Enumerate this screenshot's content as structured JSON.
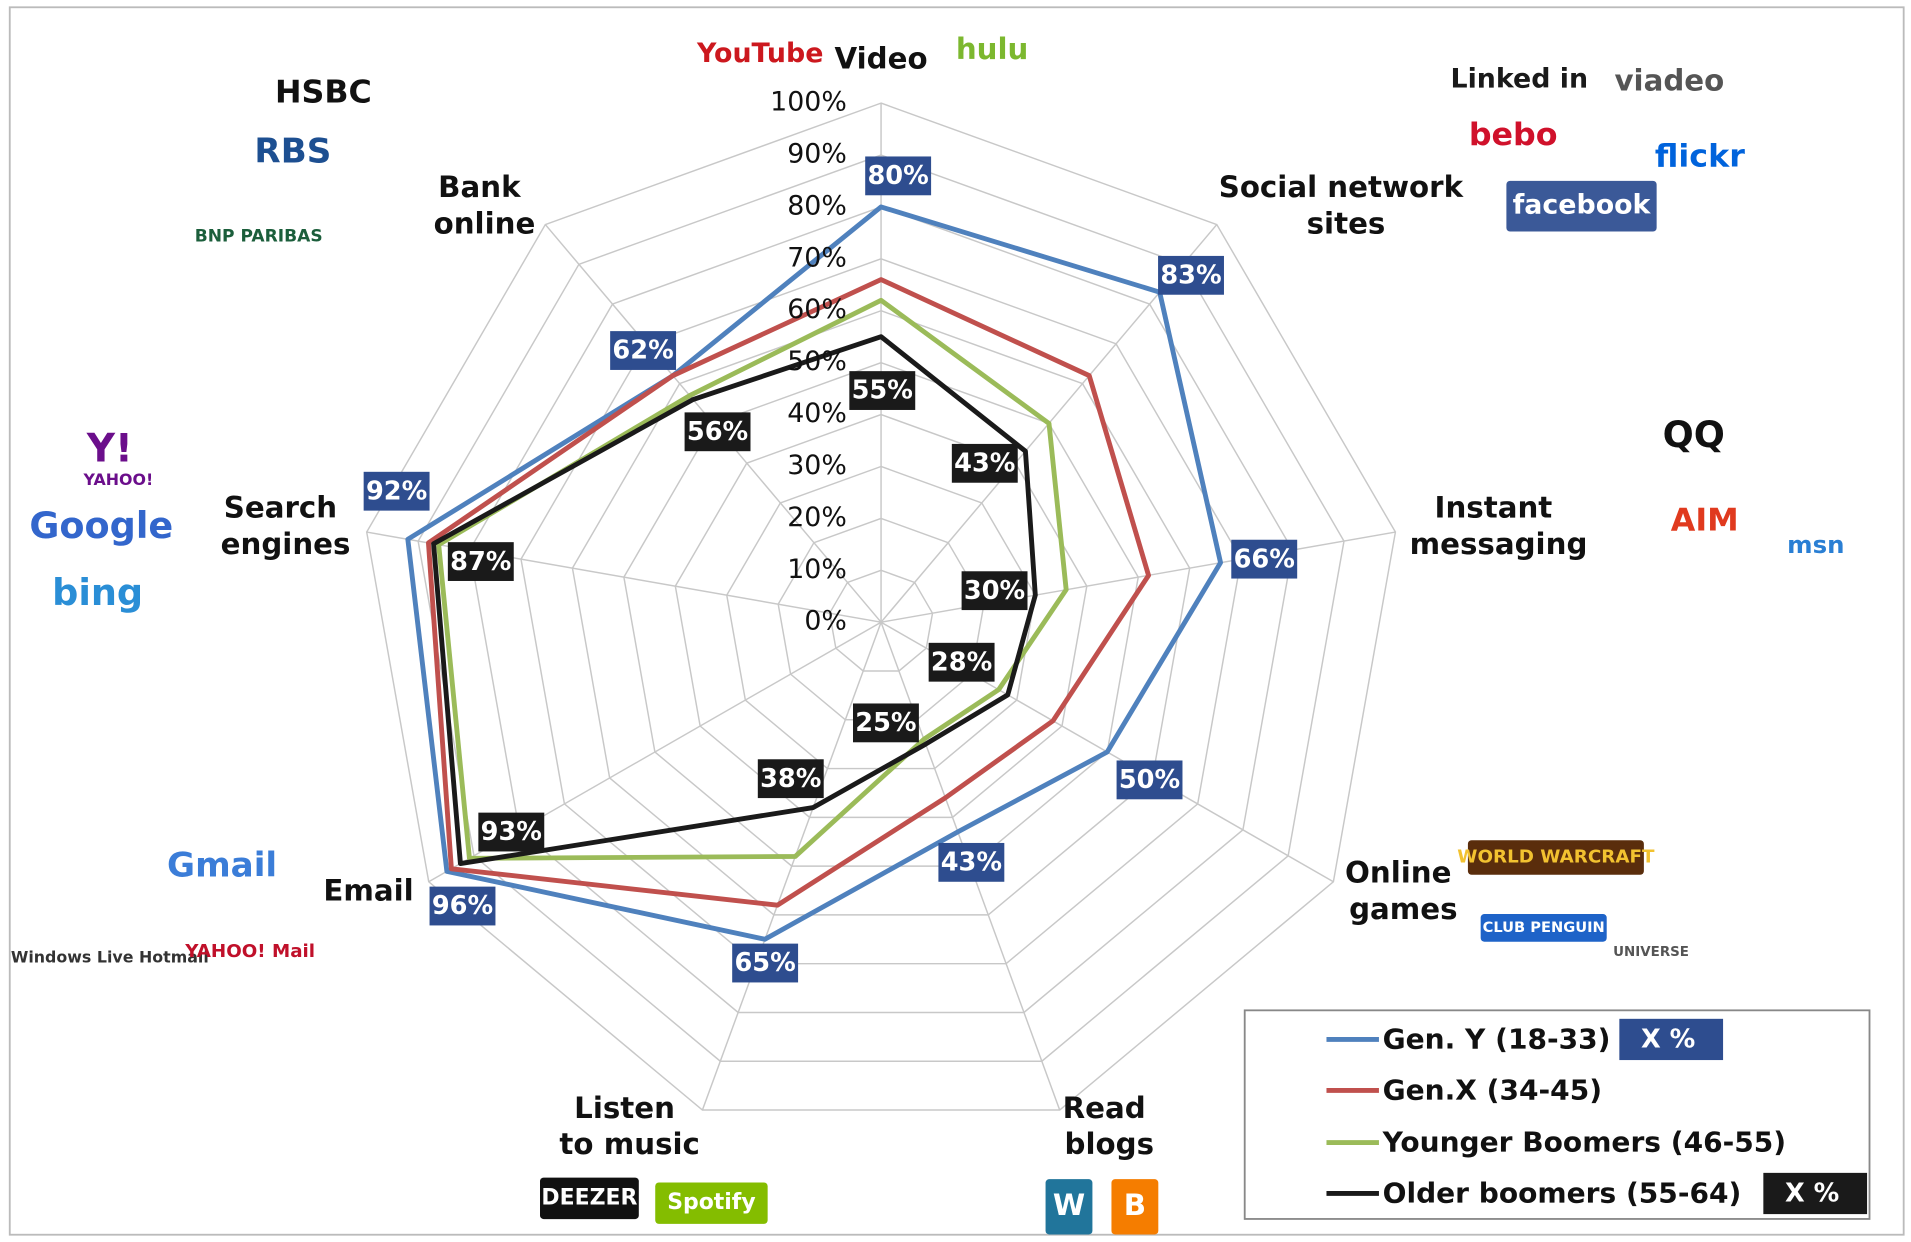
{
  "chart_data": {
    "type": "radar",
    "categories": [
      "Video",
      "Social network sites",
      "Instant messaging",
      "Online games",
      "Read blogs",
      "Listen to music",
      "Email",
      "Search engines",
      "Bank online"
    ],
    "rlim": [
      0,
      100
    ],
    "rticks": [
      {
        "value": 0,
        "label": "0%"
      },
      {
        "value": 10,
        "label": "10%"
      },
      {
        "value": 20,
        "label": "20%"
      },
      {
        "value": 30,
        "label": "30%"
      },
      {
        "value": 40,
        "label": "40%"
      },
      {
        "value": 50,
        "label": "50%"
      },
      {
        "value": 60,
        "label": "60%"
      },
      {
        "value": 70,
        "label": "70%"
      },
      {
        "value": 80,
        "label": "80%"
      },
      {
        "value": 90,
        "label": "90%"
      },
      {
        "value": 100,
        "label": "100%"
      }
    ],
    "grid": true,
    "legend_position": "lower right",
    "series": [
      {
        "name": "Gen. Y (18-33)",
        "color": "#4f81bd",
        "label_color": "#2e4d8f",
        "legend_badge": "X %",
        "values": [
          80,
          83,
          66,
          50,
          43,
          65,
          96,
          92,
          62
        ],
        "value_labels": [
          "80%",
          "83%",
          "66%",
          "50%",
          "43%",
          "65%",
          "96%",
          "92%",
          "62%"
        ]
      },
      {
        "name": "Gen.X (34-45)",
        "color": "#c0504d",
        "values": [
          66,
          62,
          52,
          38,
          36,
          58,
          95,
          88,
          62
        ]
      },
      {
        "name": "Younger Boomers (46-55)",
        "color": "#9bbb59",
        "values": [
          62,
          50,
          36,
          26,
          24,
          48,
          91,
          86,
          57
        ]
      },
      {
        "name": "Older boomers (55-64)",
        "color": "#1a1a1a",
        "label_color": "#1a1a1a",
        "legend_badge": "X %",
        "values": [
          55,
          43,
          30,
          28,
          25,
          38,
          93,
          87,
          56
        ],
        "value_labels": [
          "55%",
          "43%",
          "30%",
          "28%",
          "25%",
          "38%",
          "93%",
          "87%",
          "56%"
        ]
      }
    ],
    "logos": [
      {
        "text": "YouTube",
        "color": "#cc181e"
      },
      {
        "text": "hulu",
        "color": "#7cb82f"
      },
      {
        "text": "HSBC",
        "color": "#111111"
      },
      {
        "text": "RBS",
        "color": "#1d4f91"
      },
      {
        "text": "BNP PARIBAS",
        "color": "#1b5e3b"
      },
      {
        "text": "Linked in",
        "color": "#1a1a1a"
      },
      {
        "text": "viadeo",
        "color": "#555555"
      },
      {
        "text": "bebo",
        "color": "#d0112b"
      },
      {
        "text": "flickr",
        "color": "#0063dc"
      },
      {
        "text": "facebook",
        "color": "#ffffff",
        "bg": "#3b5998"
      },
      {
        "text": "QQ",
        "color": "#111111"
      },
      {
        "text": "AIM",
        "color": "#e03a1e"
      },
      {
        "text": "msn",
        "color": "#2a7fd4"
      },
      {
        "text": "Y!",
        "color": "#6b0e8b"
      },
      {
        "text": "YAHOO!",
        "color": "#6b0e8b"
      },
      {
        "text": "Google",
        "color": "#3366cc"
      },
      {
        "text": "bing",
        "color": "#2a8ed6"
      },
      {
        "text": "Gmail",
        "color": "#3b7dd8"
      },
      {
        "text": "Windows Live Hotmail",
        "color": "#333333"
      },
      {
        "text": "YAHOO! Mail",
        "color": "#c0102a"
      },
      {
        "text": "WORLD WARCRAFT",
        "color": "#f2c230",
        "bg": "#5a2d0c"
      },
      {
        "text": "CLUB PENGUIN",
        "color": "#ffffff",
        "bg": "#1e63c8"
      },
      {
        "text": "UNIVERSE",
        "color": "#555555"
      },
      {
        "text": "DEEZER",
        "color": "#ffffff",
        "bg": "#111111"
      },
      {
        "text": "Spotify",
        "color": "#ffffff",
        "bg": "#84bd00"
      },
      {
        "text": "W",
        "color": "#ffffff",
        "bg": "#21759b"
      },
      {
        "text": "B",
        "color": "#ffffff",
        "bg": "#f57d00"
      }
    ]
  }
}
